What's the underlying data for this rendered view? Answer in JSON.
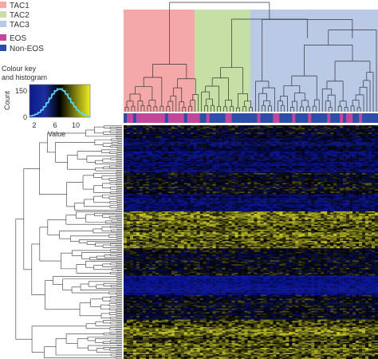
{
  "legend": {
    "clusters": [
      {
        "label": "TAC1",
        "color": "#f4a9a8"
      },
      {
        "label": "TAC2",
        "color": "#c6dfa5"
      },
      {
        "label": "TAC3",
        "color": "#b9c9e6"
      }
    ],
    "phenotypes": [
      {
        "label": "EOS",
        "color": "#c0479a"
      },
      {
        "label": "Non-EOS",
        "color": "#2b4fa8"
      }
    ]
  },
  "colour_key": {
    "title_line1": "Colour key",
    "title_line2": "and histogram",
    "ylabel": "Count",
    "xlabel": "Value",
    "yticks": [
      "150",
      "0"
    ],
    "xticks": [
      "2",
      "6",
      "10"
    ],
    "gradient": [
      "#0b1a8c",
      "#1c2f9e",
      "#000000",
      "#8a8a10",
      "#f0f020"
    ]
  },
  "chart_data": {
    "type": "heatmap",
    "title": "",
    "xlabel": "",
    "ylabel": "",
    "colour_key_axis": {
      "xlim": [
        1,
        12
      ],
      "ylim": [
        0,
        150
      ],
      "xticks": [
        2,
        6,
        10
      ],
      "yticks": [
        0,
        150
      ]
    },
    "column_clusters": [
      {
        "name": "TAC1",
        "n_columns": 24
      },
      {
        "name": "TAC2",
        "n_columns": 17
      },
      {
        "name": "TAC3",
        "n_columns": 39
      }
    ],
    "column_annotation": "EOS / Non-EOS",
    "row_blocks": [
      {
        "rows": 10,
        "level": "mixed"
      },
      {
        "rows": 28,
        "level": "low"
      },
      {
        "rows": 18,
        "level": "mixed"
      },
      {
        "rows": 14,
        "level": "low"
      },
      {
        "rows": 30,
        "level": "high"
      },
      {
        "rows": 22,
        "level": "mixed"
      },
      {
        "rows": 16,
        "level": "very low"
      },
      {
        "rows": 20,
        "level": "mixed"
      },
      {
        "rows": 32,
        "level": "high"
      }
    ]
  }
}
